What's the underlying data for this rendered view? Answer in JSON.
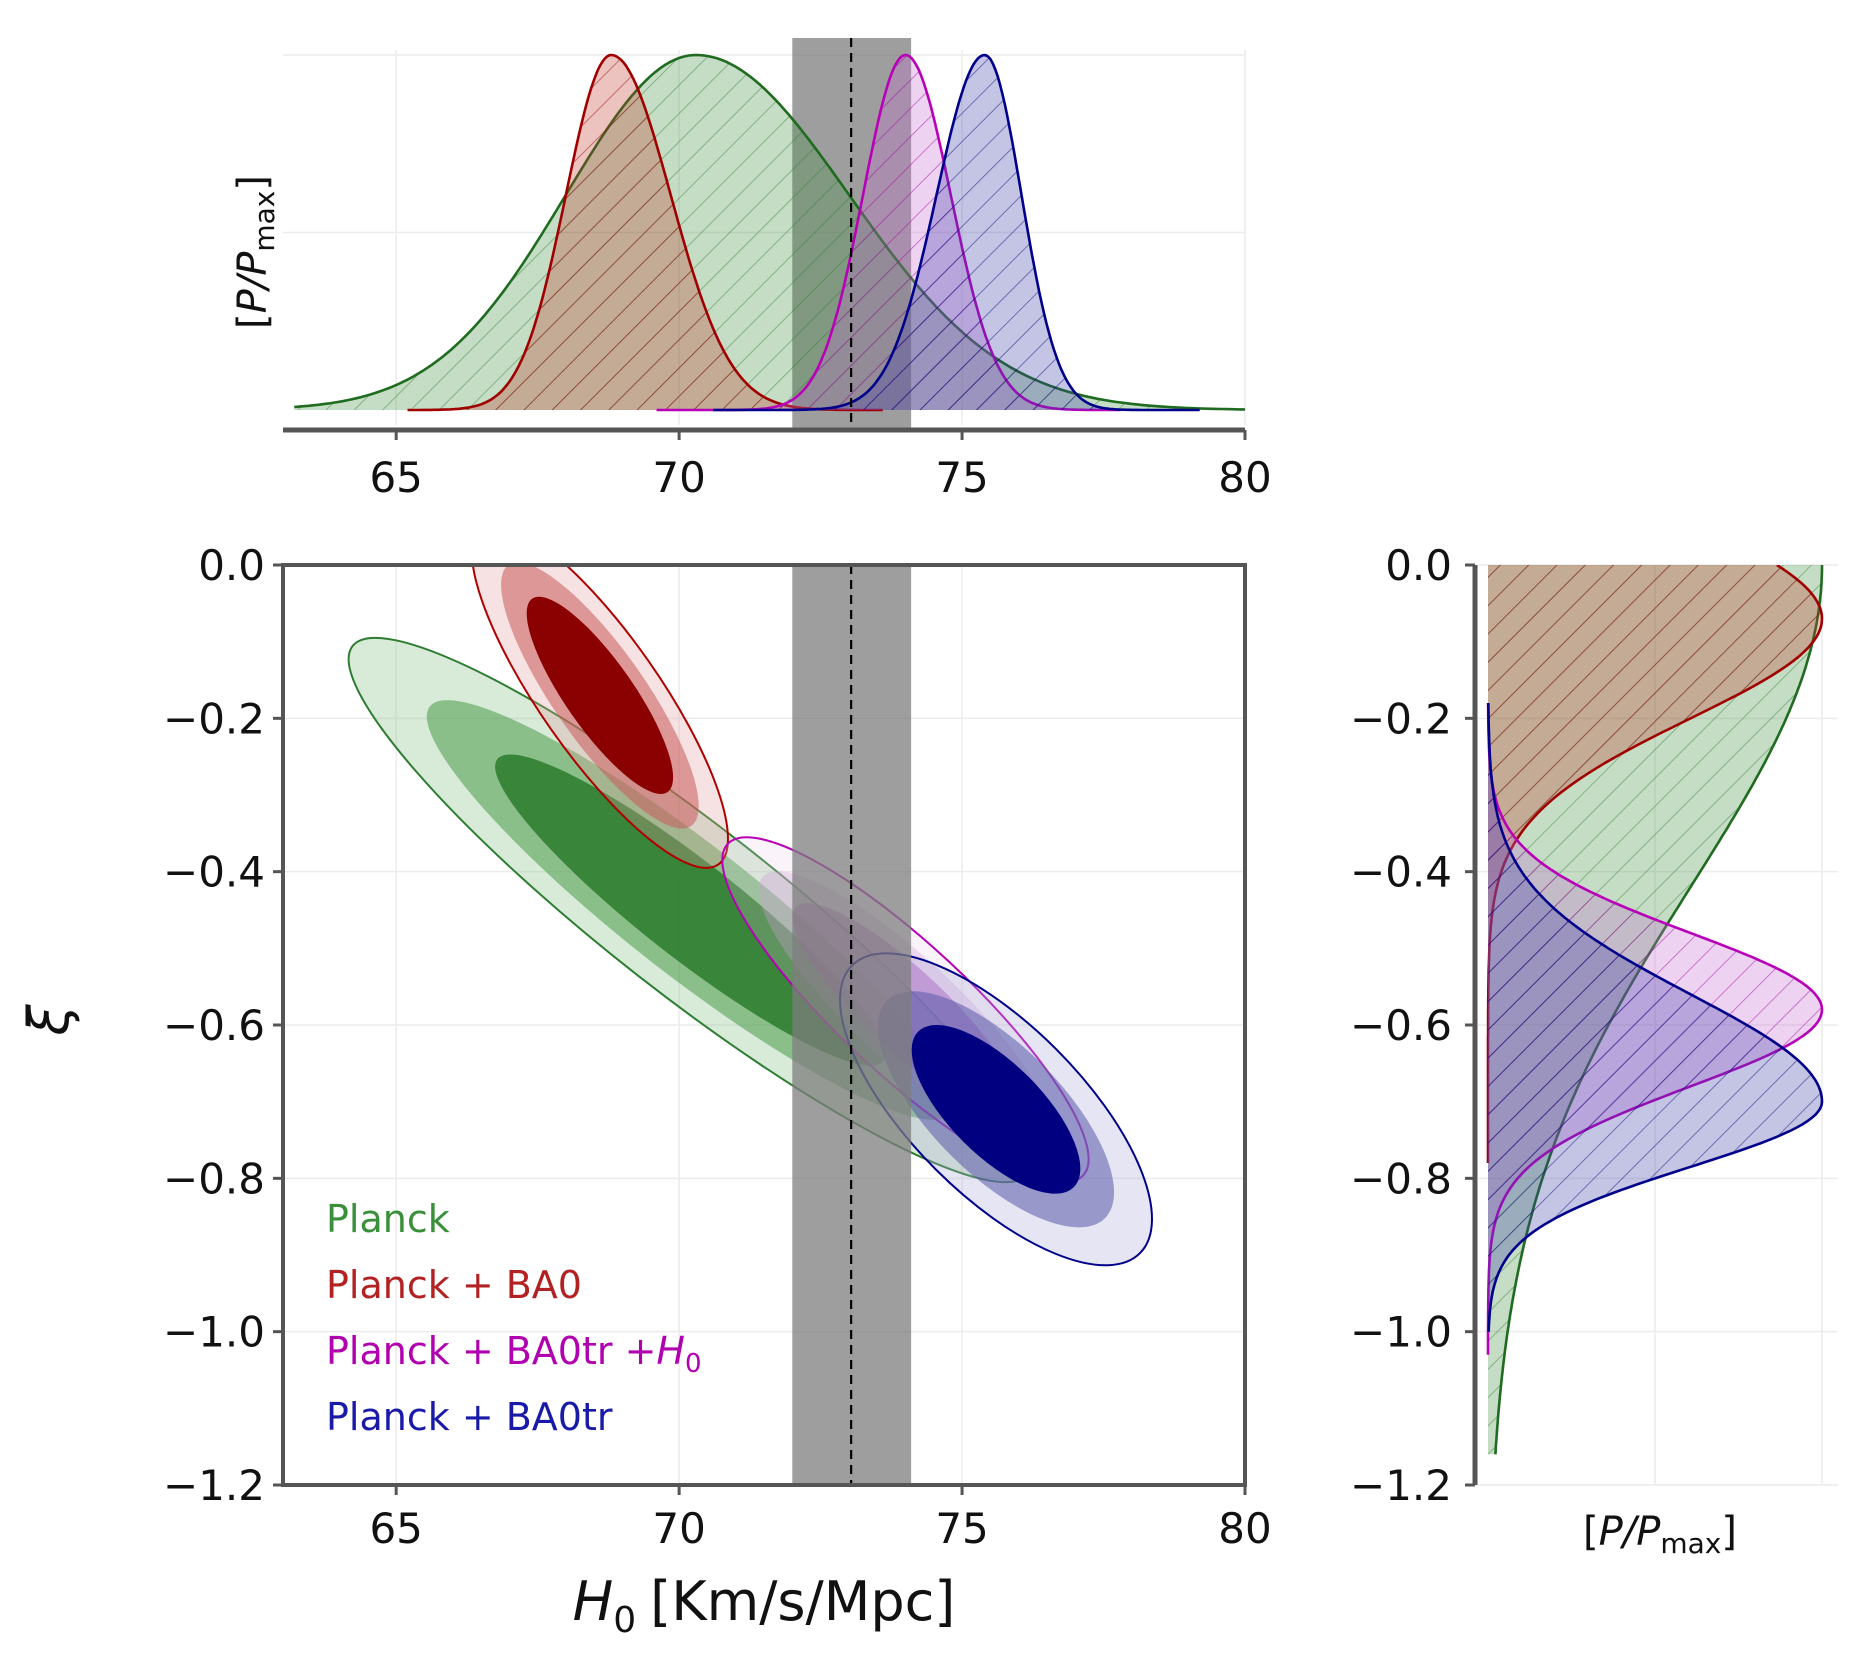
{
  "chart_data": [
    {
      "id": "main",
      "type": "contour",
      "xlabel_var": "H",
      "xlabel_sub": "0",
      "xlabel_unit": "[Km/s/Mpc]",
      "ylabel": "ξ",
      "xlim": [
        63,
        80
      ],
      "ylim": [
        -1.2,
        0.0
      ],
      "xticks": [
        65,
        70,
        75,
        80
      ],
      "yticks": [
        0.0,
        -0.2,
        -0.4,
        -0.6,
        -0.8,
        -1.0,
        -1.2
      ],
      "ytick_labels": [
        "0.0",
        "−0.2",
        "−0.4",
        "−0.6",
        "−0.8",
        "−1.0",
        "−1.2"
      ],
      "xtick_labels": [
        "65",
        "70",
        "75",
        "80"
      ],
      "h0_local": {
        "mean": 73.04,
        "low": 72.0,
        "high": 74.1,
        "color": "#9a9a9a"
      },
      "series": [
        {
          "name": "Planck",
          "color": "#2e7d32",
          "fill": "#3a8f3a",
          "center": [
            70.2,
            -0.45
          ],
          "slope": -0.1,
          "spread": [
            1.9,
            0.05
          ]
        },
        {
          "name": "Planck + BA0",
          "color": "#b00000",
          "fill": "#c0392b",
          "center": [
            68.7,
            -0.17
          ],
          "slope": -0.12,
          "spread": [
            0.7,
            0.03
          ]
        },
        {
          "name": "Planck + BA0tr +H0",
          "color": "#b800b8",
          "fill": "#c46ccf",
          "center": [
            74.0,
            -0.58
          ],
          "slope": -0.12,
          "spread": [
            0.75,
            0.04
          ]
        },
        {
          "name": "Planck + BA0tr",
          "color": "#00008b",
          "fill": "#3a3aa8",
          "center": [
            75.4,
            -0.7
          ],
          "slope": -0.12,
          "spread": [
            0.8,
            0.04
          ]
        }
      ],
      "legend": [
        {
          "text": "Planck",
          "color": "#3a8f3a"
        },
        {
          "text": "Planck + BA0",
          "color": "#b22222"
        },
        {
          "text": "Planck + BA0tr +",
          "math": "H",
          "sub": "0",
          "color": "#b000b0"
        },
        {
          "text": "Planck + BA0tr",
          "color": "#1a1aa8"
        }
      ]
    },
    {
      "id": "top",
      "type": "area",
      "ylabel_pre": "[",
      "ylabel_var": "P/P",
      "ylabel_sub": "max",
      "ylabel_post": "]",
      "xlim": [
        63,
        80
      ],
      "xticks": [
        65,
        70,
        75,
        80
      ],
      "xtick_labels": [
        "65",
        "70",
        "75",
        "80"
      ],
      "series": [
        {
          "name": "Planck",
          "mean": 70.3,
          "sd_left": 2.3,
          "sd_right": 2.7,
          "range": [
            63.2,
            80
          ]
        },
        {
          "name": "Planck + BA0",
          "mean": 68.8,
          "sd_left": 0.8,
          "sd_right": 1.05,
          "range": [
            65.2,
            73.6
          ]
        },
        {
          "name": "Planck + BA0tr +H0",
          "mean": 74.0,
          "sd_left": 0.75,
          "sd_right": 0.8,
          "range": [
            69.6,
            77.8
          ]
        },
        {
          "name": "Planck + BA0tr",
          "mean": 75.4,
          "sd_left": 0.85,
          "sd_right": 0.65,
          "range": [
            70.6,
            79.2
          ]
        }
      ]
    },
    {
      "id": "right",
      "type": "area",
      "xlabel_pre": "[",
      "xlabel_var": "P/P",
      "xlabel_sub": "max",
      "xlabel_post": "]",
      "ylim": [
        -1.2,
        0.0
      ],
      "yticks": [
        0.0,
        -0.2,
        -0.4,
        -0.6,
        -0.8,
        -1.0,
        -1.2
      ],
      "ytick_labels": [
        "0.0",
        "−0.2",
        "−0.4",
        "−0.6",
        "−0.8",
        "−1.0",
        "−1.2"
      ],
      "series": [
        {
          "name": "Planck",
          "kind": "halfnormal",
          "sd": 0.42,
          "range": [
            -1.16,
            0.0
          ]
        },
        {
          "name": "Planck + BA0",
          "mean": -0.07,
          "sd_low": 0.13,
          "sd_high": 0.13,
          "range": [
            -0.78,
            0.0
          ]
        },
        {
          "name": "Planck + BA0tr +H0",
          "mean": -0.58,
          "sd_low": 0.1,
          "sd_high": 0.1,
          "range": [
            -1.03,
            -0.18
          ]
        },
        {
          "name": "Planck + BA0tr",
          "mean": -0.7,
          "sd_low": 0.085,
          "sd_high": 0.14,
          "range": [
            -1.0,
            -0.18
          ]
        }
      ]
    }
  ]
}
